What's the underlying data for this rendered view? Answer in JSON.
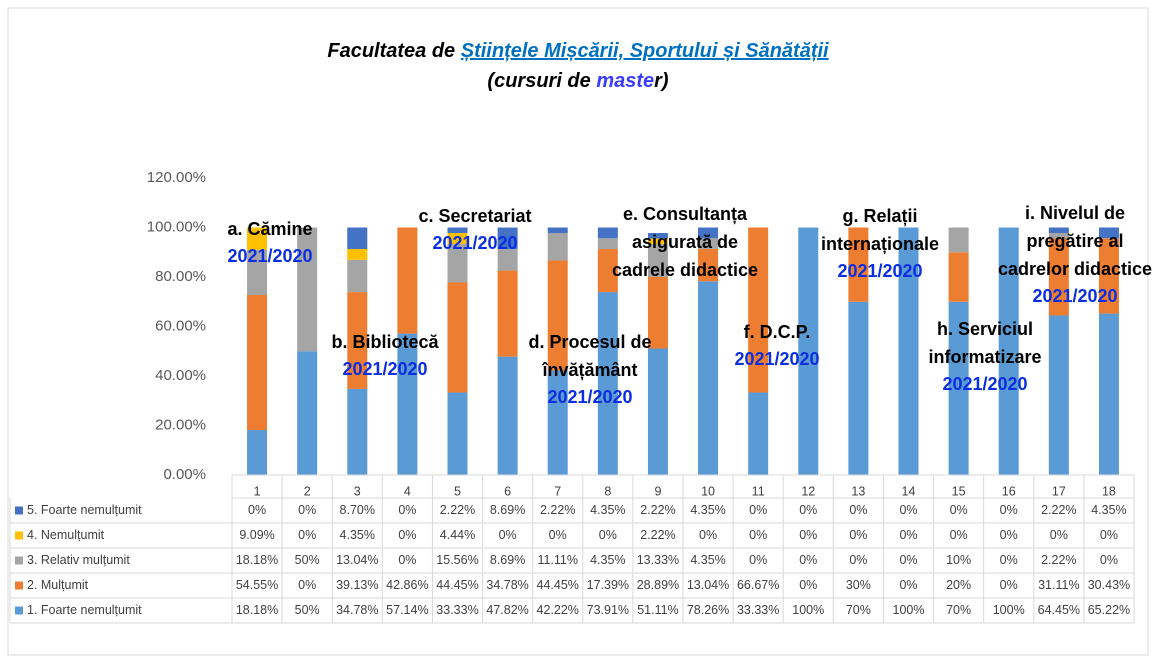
{
  "chart_data": {
    "type": "stacked_bar",
    "title_lines": [
      [
        {
          "text": "Facultatea de "
        },
        {
          "text": "Științele Mișcării, Sportului și Sănătății",
          "color": "#0070c0",
          "underline": true
        }
      ],
      [
        {
          "text": "(cursuri de "
        },
        {
          "text": "maste",
          "color": "#3b3bff"
        },
        {
          "text": "r)"
        }
      ]
    ],
    "categories": [
      "1",
      "2",
      "3",
      "4",
      "5",
      "6",
      "7",
      "8",
      "9",
      "10",
      "11",
      "12",
      "13",
      "14",
      "15",
      "16",
      "17",
      "18"
    ],
    "ylim": [
      0,
      120
    ],
    "yticks": [
      {
        "value": 0,
        "label": "0.00%"
      },
      {
        "value": 20,
        "label": "20.00%"
      },
      {
        "value": 40,
        "label": "40.00%"
      },
      {
        "value": 60,
        "label": "60.00%"
      },
      {
        "value": 80,
        "label": "80.00%"
      },
      {
        "value": 100,
        "label": "100.00%"
      },
      {
        "value": 120,
        "label": "120.00%"
      }
    ],
    "series": [
      {
        "name": "5. Foarte nemulțumit",
        "color": "#4472c4",
        "values": [
          0,
          0,
          8.7,
          0,
          2.22,
          8.69,
          2.22,
          4.35,
          2.22,
          4.35,
          0,
          0,
          0,
          0,
          0,
          0,
          2.22,
          4.35
        ],
        "value_labels": [
          "0%",
          "0%",
          "8.70%",
          "0%",
          "2.22%",
          "8.69%",
          "2.22%",
          "4.35%",
          "2.22%",
          "4.35%",
          "0%",
          "0%",
          "0%",
          "0%",
          "0%",
          "0%",
          "2.22%",
          "4.35%"
        ]
      },
      {
        "name": "4. Nemulțumit",
        "color": "#ffc000",
        "values": [
          9.09,
          0,
          4.35,
          0,
          4.44,
          0,
          0,
          0,
          2.22,
          0,
          0,
          0,
          0,
          0,
          0,
          0,
          0,
          0
        ],
        "value_labels": [
          "9.09%",
          "0%",
          "4.35%",
          "0%",
          "4.44%",
          "0%",
          "0%",
          "0%",
          "2.22%",
          "0%",
          "0%",
          "0%",
          "0%",
          "0%",
          "0%",
          "0%",
          "0%",
          "0%"
        ]
      },
      {
        "name": "3. Relativ mulțumit",
        "color": "#a5a5a5",
        "values": [
          18.18,
          50,
          13.04,
          0,
          15.56,
          8.69,
          11.11,
          4.35,
          13.33,
          4.35,
          0,
          0,
          0,
          0,
          10,
          0,
          2.22,
          0
        ],
        "value_labels": [
          "18.18%",
          "50%",
          "13.04%",
          "0%",
          "15.56%",
          "8.69%",
          "11.11%",
          "4.35%",
          "13.33%",
          "4.35%",
          "0%",
          "0%",
          "0%",
          "0%",
          "10%",
          "0%",
          "2.22%",
          "0%"
        ]
      },
      {
        "name": "2. Mulțumit",
        "color": "#ed7d31",
        "values": [
          54.55,
          0,
          39.13,
          42.86,
          44.45,
          34.78,
          44.45,
          17.39,
          28.89,
          13.04,
          66.67,
          0,
          30,
          0,
          20,
          0,
          31.11,
          30.43
        ],
        "value_labels": [
          "54.55%",
          "0%",
          "39.13%",
          "42.86%",
          "44.45%",
          "34.78%",
          "44.45%",
          "17.39%",
          "28.89%",
          "13.04%",
          "66.67%",
          "0%",
          "30%",
          "0%",
          "20%",
          "0%",
          "31.11%",
          "30.43%"
        ]
      },
      {
        "name": "1. Foarte nemulțumit",
        "color": "#5b9bd5",
        "values": [
          18.18,
          50,
          34.78,
          57.14,
          33.33,
          47.82,
          42.22,
          73.91,
          51.11,
          78.26,
          33.33,
          100,
          70,
          100,
          70,
          100,
          64.45,
          65.22
        ],
        "value_labels": [
          "18.18%",
          "50%",
          "34.78%",
          "57.14%",
          "33.33%",
          "47.82%",
          "42.22%",
          "73.91%",
          "51.11%",
          "78.26%",
          "33.33%",
          "100%",
          "70%",
          "100%",
          "70%",
          "100%",
          "64.45%",
          "65.22%"
        ]
      }
    ],
    "annotations": [
      {
        "lines": [
          "a. Cămine"
        ],
        "year": "2021/2020"
      },
      {
        "lines": [
          "b. Bibliotecă"
        ],
        "year": "2021/2020"
      },
      {
        "lines": [
          "c. Secretariat"
        ],
        "year": "2021/2020"
      },
      {
        "lines": [
          "d. Procesul de",
          "învățământ"
        ],
        "year": "2021/2020"
      },
      {
        "lines": [
          "e. Consultanța",
          "asigurată de",
          "cadrele didactice"
        ]
      },
      {
        "lines": [
          "f. D.C.P."
        ],
        "year": "2021/2020"
      },
      {
        "lines": [
          "g. Relații",
          "internaționale"
        ],
        "year": "2021/2020"
      },
      {
        "lines": [
          "h. Serviciul",
          "informatizare"
        ],
        "year": "2021/2020"
      },
      {
        "lines": [
          "i. Nivelul de",
          "pregătire al",
          "cadrelor didactice"
        ],
        "year": "2021/2020"
      }
    ]
  }
}
